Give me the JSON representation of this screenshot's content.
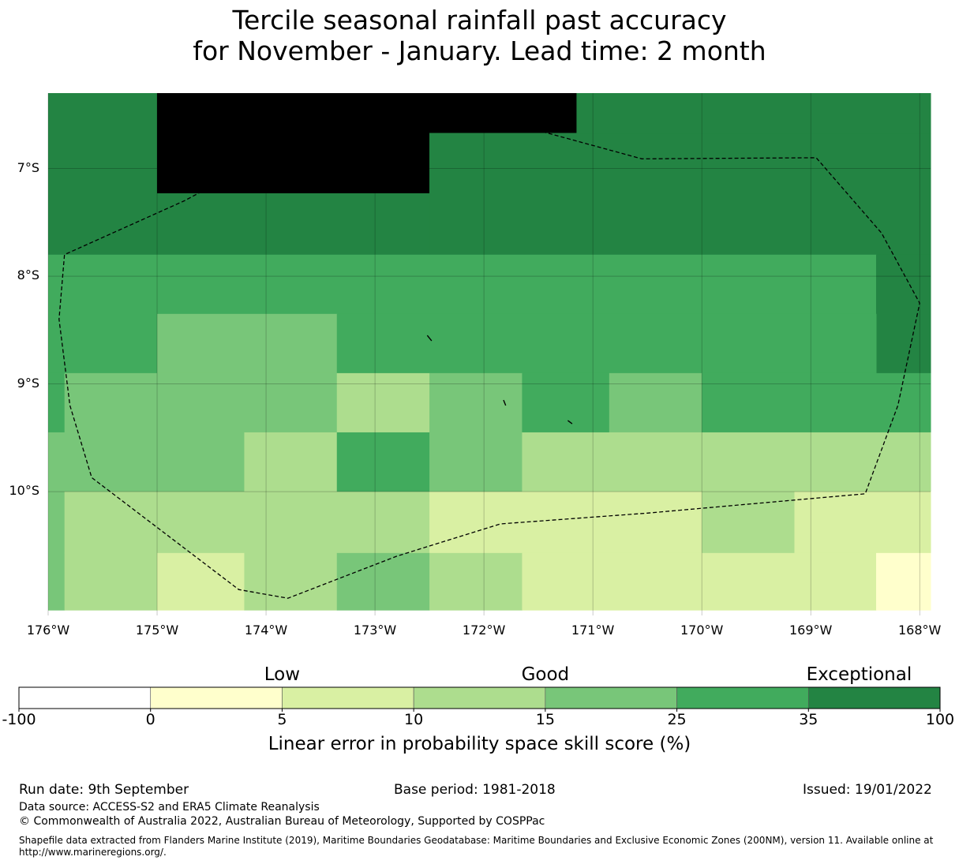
{
  "title": {
    "line1": "Tercile seasonal rainfall past accuracy",
    "line2": "for November - January. Lead time: 2 month"
  },
  "map": {
    "lon_range": [
      -176,
      -167.9
    ],
    "lat_range": [
      -11.15,
      -6.3
    ],
    "lat_ticks": [
      {
        "value": -7,
        "label": "7°S"
      },
      {
        "value": -8,
        "label": "8°S"
      },
      {
        "value": -9,
        "label": "9°S"
      },
      {
        "value": -10,
        "label": "10°S"
      }
    ],
    "lon_ticks": [
      {
        "value": -176,
        "label": "176°W"
      },
      {
        "value": -175,
        "label": "175°W"
      },
      {
        "value": -174,
        "label": "174°W"
      },
      {
        "value": -173,
        "label": "173°W"
      },
      {
        "value": -172,
        "label": "172°W"
      },
      {
        "value": -171,
        "label": "171°W"
      },
      {
        "value": -170,
        "label": "170°W"
      },
      {
        "value": -169,
        "label": "169°W"
      },
      {
        "value": -168,
        "label": "168°W"
      }
    ],
    "gridlines": true,
    "cells": [
      {
        "lon": [
          -176,
          -175
        ],
        "lat": [
          -7.8,
          -6.3
        ],
        "level": 6
      },
      {
        "lon": [
          -175,
          -171.15
        ],
        "lat": [
          -6.67,
          -6.3
        ],
        "level": 7
      },
      {
        "lon": [
          -175,
          -172.5
        ],
        "lat": [
          -7.23,
          -6.67
        ],
        "level": 7
      },
      {
        "lon": [
          -172.5,
          -171.15
        ],
        "lat": [
          -7.23,
          -6.67
        ],
        "level": 6
      },
      {
        "lon": [
          -175,
          -172.5
        ],
        "lat": [
          -7.8,
          -7.23
        ],
        "level": 6
      },
      {
        "lon": [
          -172.5,
          -167.9
        ],
        "lat": [
          -7.8,
          -6.67
        ],
        "level": 6
      },
      {
        "lon": [
          -171.15,
          -167.9
        ],
        "lat": [
          -6.67,
          -6.3
        ],
        "level": 6
      },
      {
        "lon": [
          -176,
          -175
        ],
        "lat": [
          -8.9,
          -7.8
        ],
        "level": 5
      },
      {
        "lon": [
          -175,
          -168.4
        ],
        "lat": [
          -8.35,
          -7.8
        ],
        "level": 5
      },
      {
        "lon": [
          -168.4,
          -167.9
        ],
        "lat": [
          -8.9,
          -7.8
        ],
        "level": 6
      },
      {
        "lon": [
          -175,
          -173.35
        ],
        "lat": [
          -8.9,
          -8.35
        ],
        "level": 4
      },
      {
        "lon": [
          -173.35,
          -168.4
        ],
        "lat": [
          -8.9,
          -8.35
        ],
        "level": 5
      },
      {
        "lon": [
          -176,
          -175.85
        ],
        "lat": [
          -9.45,
          -8.9
        ],
        "level": 5
      },
      {
        "lon": [
          -175.85,
          -173.35
        ],
        "lat": [
          -9.45,
          -8.9
        ],
        "level": 4
      },
      {
        "lon": [
          -173.35,
          -172.5
        ],
        "lat": [
          -9.45,
          -8.9
        ],
        "level": 3
      },
      {
        "lon": [
          -172.5,
          -171.65
        ],
        "lat": [
          -9.45,
          -8.9
        ],
        "level": 4
      },
      {
        "lon": [
          -171.65,
          -170.85
        ],
        "lat": [
          -9.45,
          -8.9
        ],
        "level": 5
      },
      {
        "lon": [
          -170.85,
          -170
        ],
        "lat": [
          -9.45,
          -8.9
        ],
        "level": 4
      },
      {
        "lon": [
          -170,
          -167.9
        ],
        "lat": [
          -9.45,
          -8.9
        ],
        "level": 5
      },
      {
        "lon": [
          -176,
          -174.2
        ],
        "lat": [
          -10,
          -9.45
        ],
        "level": 4
      },
      {
        "lon": [
          -174.2,
          -173.35
        ],
        "lat": [
          -10,
          -9.45
        ],
        "level": 3
      },
      {
        "lon": [
          -173.35,
          -172.5
        ],
        "lat": [
          -10,
          -9.45
        ],
        "level": 5
      },
      {
        "lon": [
          -172.5,
          -171.65
        ],
        "lat": [
          -10,
          -9.45
        ],
        "level": 4
      },
      {
        "lon": [
          -171.65,
          -167.9
        ],
        "lat": [
          -10,
          -9.45
        ],
        "level": 3
      },
      {
        "lon": [
          -176,
          -175.85
        ],
        "lat": [
          -11.1,
          -10
        ],
        "level": 4
      },
      {
        "lon": [
          -175.85,
          -172.5
        ],
        "lat": [
          -10.57,
          -10
        ],
        "level": 3
      },
      {
        "lon": [
          -172.5,
          -170
        ],
        "lat": [
          -10.57,
          -10
        ],
        "level": 2
      },
      {
        "lon": [
          -170,
          -169.15
        ],
        "lat": [
          -10.57,
          -10
        ],
        "level": 3
      },
      {
        "lon": [
          -169.15,
          -167.9
        ],
        "lat": [
          -10.57,
          -10
        ],
        "level": 2
      },
      {
        "lon": [
          -175.85,
          -175
        ],
        "lat": [
          -11.1,
          -10.57
        ],
        "level": 3
      },
      {
        "lon": [
          -175,
          -174.2
        ],
        "lat": [
          -11.1,
          -10.57
        ],
        "level": 2
      },
      {
        "lon": [
          -174.2,
          -173.35
        ],
        "lat": [
          -11.1,
          -10.57
        ],
        "level": 3
      },
      {
        "lon": [
          -173.35,
          -172.5
        ],
        "lat": [
          -11.1,
          -10.57
        ],
        "level": 4
      },
      {
        "lon": [
          -172.5,
          -171.65
        ],
        "lat": [
          -11.1,
          -10.57
        ],
        "level": 3
      },
      {
        "lon": [
          -171.65,
          -168.4
        ],
        "lat": [
          -11.1,
          -10.57
        ],
        "level": 2
      },
      {
        "lon": [
          -168.4,
          -167.9
        ],
        "lat": [
          -11.1,
          -10.57
        ],
        "level": 1
      }
    ],
    "eez_boundary": [
      [
        -173.25,
        -6.49
      ],
      [
        -171.6,
        -6.62
      ],
      [
        -170.55,
        -6.91
      ],
      [
        -168.95,
        -6.9
      ],
      [
        -168.35,
        -7.6
      ],
      [
        -168,
        -8.25
      ],
      [
        -168.2,
        -9.2
      ],
      [
        -168.5,
        -10.02
      ],
      [
        -170.5,
        -10.2
      ],
      [
        -171.85,
        -10.3
      ],
      [
        -172.8,
        -10.6
      ],
      [
        -173.8,
        -10.99
      ],
      [
        -174.25,
        -10.91
      ],
      [
        -175.6,
        -9.87
      ],
      [
        -175.8,
        -9.2
      ],
      [
        -175.9,
        -8.4
      ],
      [
        -175.85,
        -7.8
      ],
      [
        -174.75,
        -7.3
      ],
      [
        -173.25,
        -6.49
      ]
    ],
    "islands": [
      [
        [
          -172.52,
          -8.55
        ],
        [
          -172.48,
          -8.6
        ]
      ],
      [
        [
          -171.82,
          -9.15
        ],
        [
          -171.8,
          -9.2
        ]
      ],
      [
        [
          -171.23,
          -9.34
        ],
        [
          -171.19,
          -9.37
        ]
      ]
    ]
  },
  "colorbar": {
    "categories": [
      {
        "label": "Low",
        "value": 5
      },
      {
        "label": "Good",
        "value": 15
      },
      {
        "label": "Exceptional",
        "value": 60
      }
    ],
    "ticks": [
      "-100",
      "0",
      "5",
      "10",
      "15",
      "25",
      "35",
      "100"
    ],
    "colors": [
      "#ffffff",
      "#ffffcc",
      "#d9f0a3",
      "#addd8e",
      "#78c679",
      "#41ab5d",
      "#238443"
    ],
    "title": "Linear error in probability space skill score (%)"
  },
  "footer": {
    "run_date": "Run date: 9th September",
    "base_period": "Base period: 1981-2018",
    "issued": "Issued: 19/01/2022",
    "data_source": "Data source: ACCESS-S2 and ERA5 Climate Reanalysis",
    "copyright": "© Commonwealth of Australia 2022, Australian Bureau of Meteorology, Supported by COSPPac",
    "shapefile": "Shapefile data extracted from Flanders Marine Institute (2019), Maritime Boundaries Geodatabase: Maritime Boundaries and Exclusive Economic Zones (200NM), version 11. Available online at http://www.marineregions.org/."
  }
}
